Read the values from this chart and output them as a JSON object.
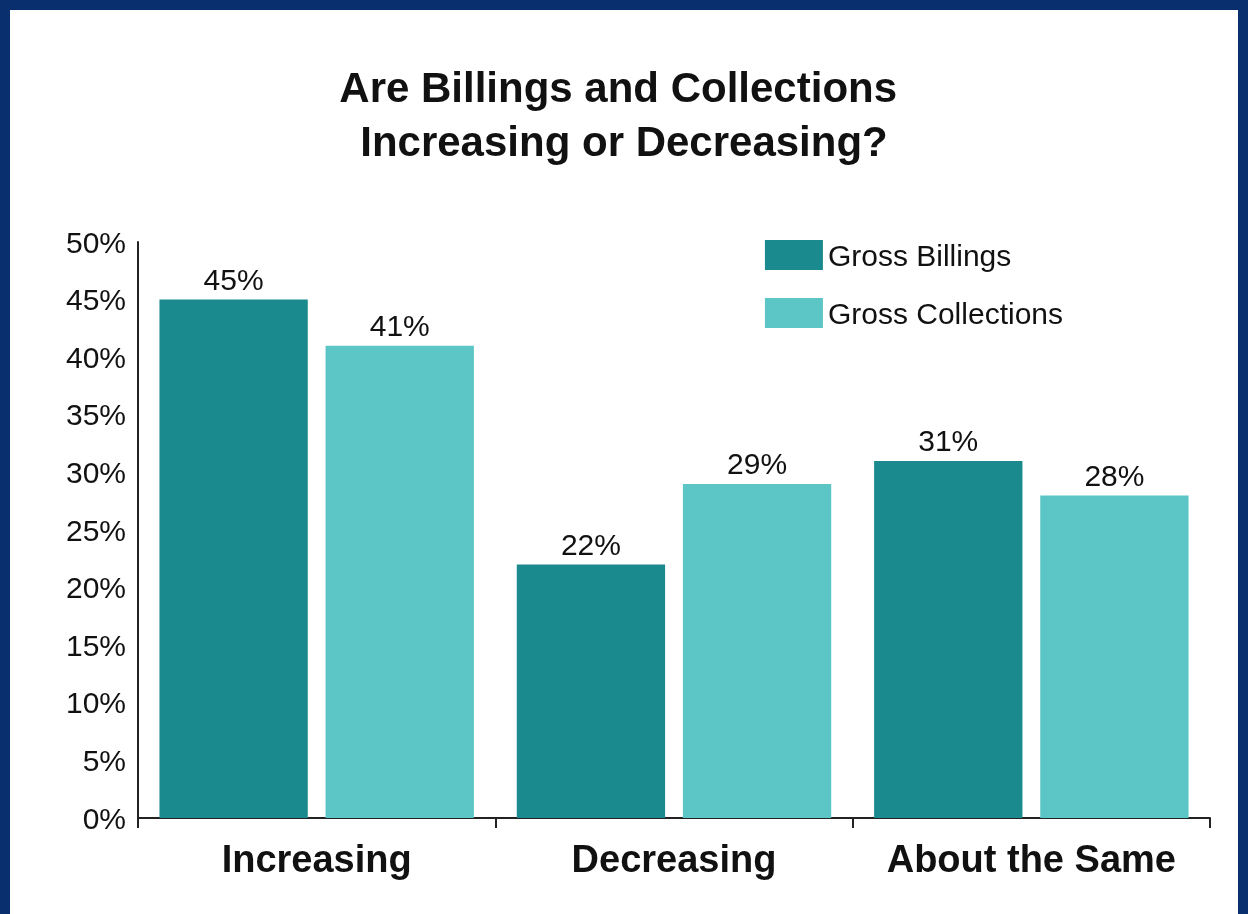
{
  "chart_data": {
    "type": "bar",
    "title": "Are Billings and Collections Increasing or Decreasing?",
    "categories": [
      "Increasing",
      "Decreasing",
      "About the Same"
    ],
    "series": [
      {
        "name": "Gross Billings",
        "color": "#1b8a8f",
        "values": [
          45,
          22,
          31
        ],
        "value_labels": [
          "45%",
          "22%",
          "31%"
        ]
      },
      {
        "name": "Gross Collections",
        "color": "#5cc5c6",
        "values": [
          41,
          29,
          28
        ],
        "value_labels": [
          "41%",
          "29%",
          "28%"
        ]
      }
    ],
    "ylim": [
      0,
      50
    ],
    "yticks": [
      {
        "value": 0,
        "label": "0%"
      },
      {
        "value": 5,
        "label": "5%"
      },
      {
        "value": 10,
        "label": "10%"
      },
      {
        "value": 15,
        "label": "15%"
      },
      {
        "value": 20,
        "label": "20%"
      },
      {
        "value": 25,
        "label": "25%"
      },
      {
        "value": 30,
        "label": "30%"
      },
      {
        "value": 35,
        "label": "35%"
      },
      {
        "value": 40,
        "label": "40%"
      },
      {
        "value": 45,
        "label": "45%"
      },
      {
        "value": 50,
        "label": "50%"
      }
    ],
    "grid": false,
    "legend": "top right"
  }
}
